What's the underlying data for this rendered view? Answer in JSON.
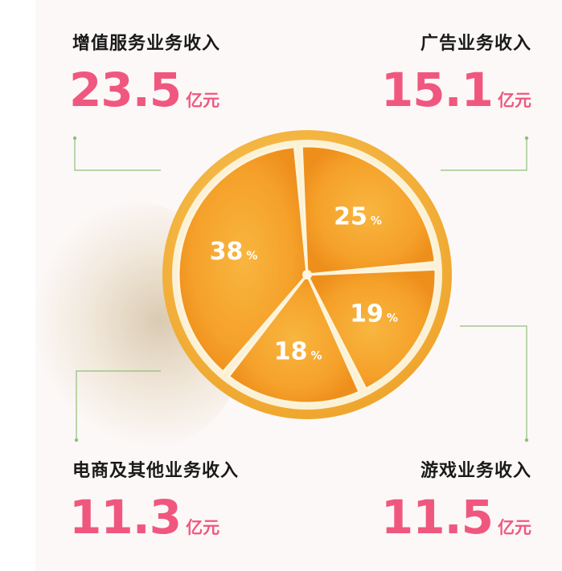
{
  "chart_data": {
    "type": "pie",
    "slices": [
      {
        "label": "增值服务业务收入",
        "value": 23.5,
        "unit": "亿元",
        "percent": 38
      },
      {
        "label": "广告业务收入",
        "value": 15.1,
        "unit": "亿元",
        "percent": 25
      },
      {
        "label": "游戏业务收入",
        "value": 11.5,
        "unit": "亿元",
        "percent": 19
      },
      {
        "label": "电商及其他业务收入",
        "value": 11.3,
        "unit": "亿元",
        "percent": 18
      }
    ],
    "percent_symbol": "%"
  },
  "colors": {
    "value_pink": "#f0577f",
    "label_dark": "#1a1a1a",
    "orange_flesh": "#f5a12a",
    "orange_rind": "#f4b73c",
    "pith": "#fbf3dc",
    "leader_line": "#8fbf7a"
  }
}
